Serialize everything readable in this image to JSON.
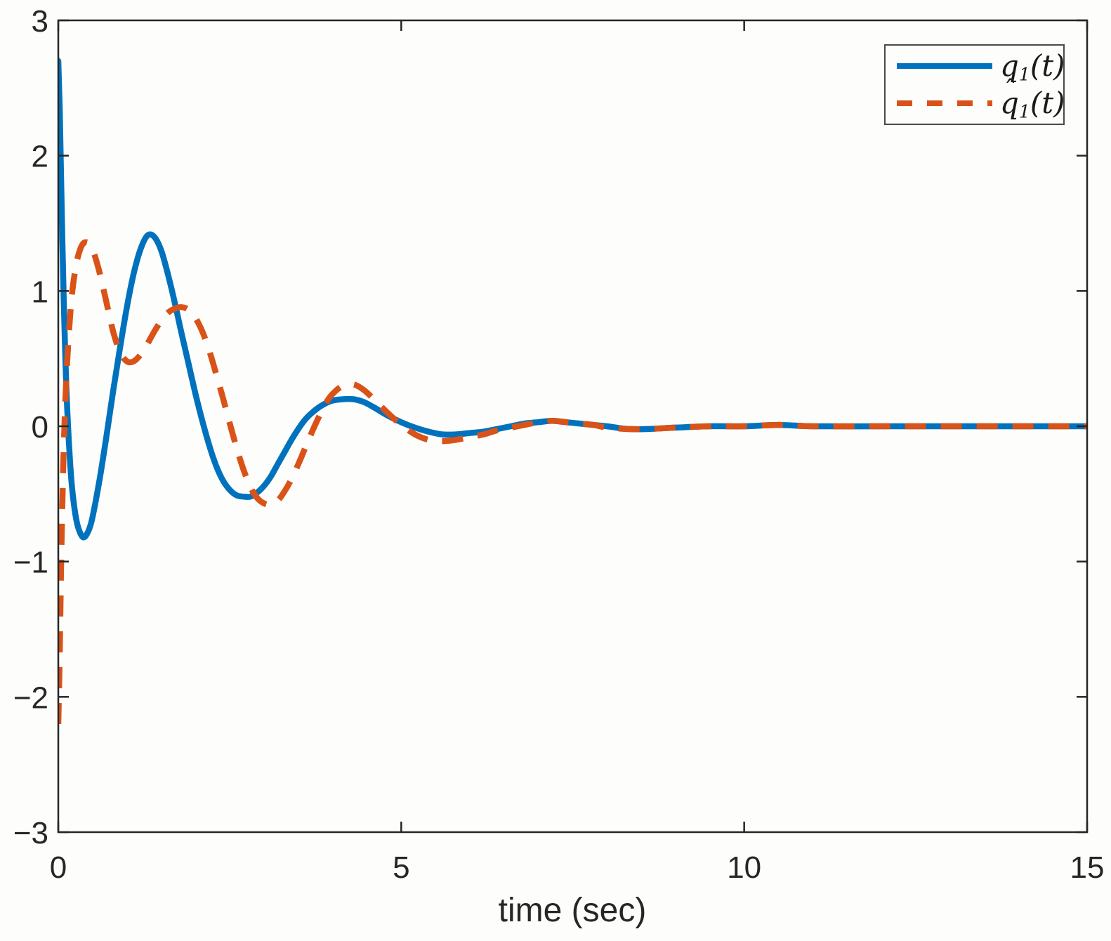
{
  "figure": {
    "background": "#fdfdfb",
    "axis_color": "#262626"
  },
  "legend": {
    "items": [
      {
        "hat": "",
        "base": "q",
        "sub": "1",
        "args": "(t)",
        "color": "#0072BD",
        "style": "solid"
      },
      {
        "hat": "ˆ",
        "base": "q",
        "sub": "1",
        "args": "(t)",
        "color": "#D95319",
        "style": "dashed"
      }
    ]
  },
  "chart_data": {
    "type": "line",
    "title": "",
    "xlabel": "time (sec)",
    "ylabel": "",
    "xlim": [
      0,
      15
    ],
    "ylim": [
      -3,
      3
    ],
    "xticks": [
      0,
      5,
      10,
      15
    ],
    "yticks": [
      -3,
      -2,
      -1,
      0,
      1,
      2,
      3
    ],
    "grid": false,
    "legend_position": "top-right",
    "categories_note": "x is time in seconds",
    "x": [
      0,
      0.02,
      0.04,
      0.06,
      0.08,
      0.1,
      0.12,
      0.14,
      0.17,
      0.2,
      0.24,
      0.28,
      0.32,
      0.36,
      0.4,
      0.45,
      0.5,
      0.6,
      0.7,
      0.8,
      0.9,
      1.0,
      1.1,
      1.2,
      1.3,
      1.4,
      1.5,
      1.6,
      1.7,
      1.8,
      1.9,
      2.0,
      2.1,
      2.2,
      2.3,
      2.4,
      2.5,
      2.6,
      2.7,
      2.8,
      2.9,
      3.0,
      3.1,
      3.2,
      3.3,
      3.4,
      3.5,
      3.6,
      3.7,
      3.8,
      3.9,
      4.0,
      4.15,
      4.3,
      4.45,
      4.6,
      4.8,
      5.0,
      5.2,
      5.4,
      5.6,
      5.8,
      6.0,
      6.2,
      6.4,
      6.6,
      6.8,
      7.0,
      7.2,
      7.4,
      7.6,
      7.8,
      8.0,
      8.3,
      8.6,
      9.0,
      9.5,
      10.0,
      10.5,
      11.0,
      12.0,
      13.0,
      14.0,
      15.0
    ],
    "series": [
      {
        "name": "q₁(t)",
        "color": "#0072BD",
        "line_style": "solid",
        "line_width": 8.5,
        "y": [
          2.7,
          2.35,
          1.85,
          1.35,
          0.92,
          0.55,
          0.25,
          0.02,
          -0.25,
          -0.45,
          -0.62,
          -0.73,
          -0.79,
          -0.82,
          -0.81,
          -0.76,
          -0.67,
          -0.4,
          -0.08,
          0.26,
          0.58,
          0.88,
          1.13,
          1.31,
          1.41,
          1.4,
          1.3,
          1.12,
          0.91,
          0.68,
          0.46,
          0.24,
          0.04,
          -0.14,
          -0.29,
          -0.4,
          -0.47,
          -0.51,
          -0.52,
          -0.52,
          -0.49,
          -0.44,
          -0.37,
          -0.28,
          -0.19,
          -0.1,
          -0.02,
          0.05,
          0.1,
          0.14,
          0.17,
          0.19,
          0.2,
          0.2,
          0.18,
          0.14,
          0.08,
          0.03,
          -0.01,
          -0.04,
          -0.06,
          -0.06,
          -0.05,
          -0.04,
          -0.02,
          0.0,
          0.02,
          0.03,
          0.04,
          0.03,
          0.02,
          0.01,
          0.0,
          -0.02,
          -0.02,
          -0.01,
          0.0,
          0.0,
          0.01,
          0.0,
          0.0,
          0.0,
          0.0,
          0.0
        ]
      },
      {
        "name": "q̂₁(t)",
        "color": "#D95319",
        "line_style": "dashed",
        "line_width": 8.5,
        "y": [
          -2.2,
          -1.7,
          -1.05,
          -0.55,
          -0.15,
          0.15,
          0.38,
          0.57,
          0.8,
          0.98,
          1.13,
          1.24,
          1.31,
          1.35,
          1.36,
          1.35,
          1.31,
          1.14,
          0.92,
          0.7,
          0.55,
          0.48,
          0.48,
          0.53,
          0.61,
          0.7,
          0.78,
          0.84,
          0.87,
          0.88,
          0.86,
          0.8,
          0.7,
          0.56,
          0.39,
          0.21,
          0.02,
          -0.16,
          -0.32,
          -0.45,
          -0.53,
          -0.57,
          -0.58,
          -0.55,
          -0.48,
          -0.39,
          -0.28,
          -0.16,
          -0.04,
          0.07,
          0.17,
          0.24,
          0.3,
          0.31,
          0.27,
          0.2,
          0.1,
          0.01,
          -0.06,
          -0.1,
          -0.11,
          -0.1,
          -0.08,
          -0.06,
          -0.03,
          -0.01,
          0.01,
          0.03,
          0.04,
          0.03,
          0.02,
          0.01,
          -0.01,
          -0.02,
          -0.02,
          -0.01,
          0.0,
          0.0,
          0.01,
          0.0,
          0.0,
          0.0,
          0.0,
          0.0
        ]
      }
    ]
  }
}
